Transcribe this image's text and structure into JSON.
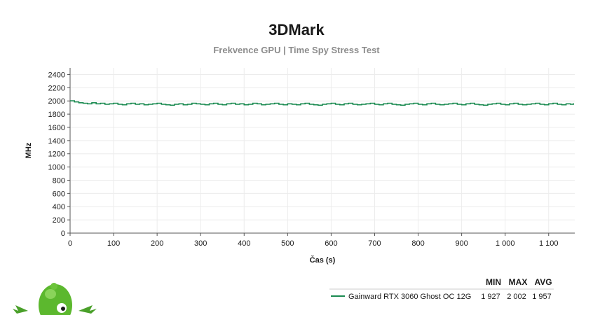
{
  "chart_data": {
    "type": "line",
    "title": "3DMark",
    "subtitle": "Frekvence GPU | Time Spy Stress Test",
    "xlabel": "Čas (s)",
    "ylabel": "MHz",
    "xlim": [
      0,
      1160
    ],
    "ylim": [
      0,
      2500
    ],
    "x_ticks": [
      0,
      100,
      200,
      300,
      400,
      500,
      600,
      700,
      800,
      900,
      1000,
      1100
    ],
    "x_tick_labels": [
      "0",
      "100",
      "200",
      "300",
      "400",
      "500",
      "600",
      "700",
      "800",
      "900",
      "1 000",
      "1 100"
    ],
    "y_ticks": [
      0,
      200,
      400,
      600,
      800,
      1000,
      1200,
      1400,
      1600,
      1800,
      2000,
      2200,
      2400
    ],
    "y_tick_labels": [
      "0",
      "200",
      "400",
      "600",
      "800",
      "1000",
      "1200",
      "1400",
      "1600",
      "1800",
      "2000",
      "2200",
      "2400"
    ],
    "grid": true,
    "series": [
      {
        "name": "Gainward RTX 3060 Ghost OC 12G",
        "color": "#1a8a50",
        "x": [
          0,
          10,
          20,
          30,
          40,
          50,
          60,
          70,
          80,
          90,
          100,
          110,
          120,
          130,
          140,
          150,
          160,
          170,
          180,
          190,
          200,
          210,
          220,
          230,
          240,
          250,
          260,
          270,
          280,
          290,
          300,
          310,
          320,
          330,
          340,
          350,
          360,
          370,
          380,
          390,
          400,
          410,
          420,
          430,
          440,
          450,
          460,
          470,
          480,
          490,
          500,
          510,
          520,
          530,
          540,
          550,
          560,
          570,
          580,
          590,
          600,
          610,
          620,
          630,
          640,
          650,
          660,
          670,
          680,
          690,
          700,
          710,
          720,
          730,
          740,
          750,
          760,
          770,
          780,
          790,
          800,
          810,
          820,
          830,
          840,
          850,
          860,
          870,
          880,
          890,
          900,
          910,
          920,
          930,
          940,
          950,
          960,
          970,
          980,
          990,
          1000,
          1010,
          1020,
          1030,
          1040,
          1050,
          1060,
          1070,
          1080,
          1090,
          1100,
          1110,
          1120,
          1130,
          1140,
          1150,
          1157
        ],
        "y": [
          2002,
          1985,
          1972,
          1965,
          1957,
          1972,
          1957,
          1965,
          1950,
          1957,
          1965,
          1950,
          1942,
          1957,
          1965,
          1950,
          1957,
          1942,
          1950,
          1957,
          1965,
          1950,
          1942,
          1935,
          1950,
          1957,
          1942,
          1950,
          1965,
          1957,
          1950,
          1942,
          1957,
          1965,
          1950,
          1942,
          1957,
          1965,
          1950,
          1957,
          1942,
          1950,
          1965,
          1957,
          1942,
          1950,
          1957,
          1965,
          1950,
          1942,
          1957,
          1950,
          1942,
          1957,
          1965,
          1950,
          1942,
          1935,
          1950,
          1957,
          1965,
          1950,
          1942,
          1957,
          1965,
          1950,
          1942,
          1950,
          1957,
          1965,
          1950,
          1942,
          1957,
          1965,
          1950,
          1942,
          1935,
          1950,
          1957,
          1965,
          1950,
          1942,
          1957,
          1965,
          1950,
          1942,
          1950,
          1957,
          1965,
          1950,
          1942,
          1957,
          1965,
          1950,
          1942,
          1935,
          1950,
          1957,
          1965,
          1950,
          1942,
          1957,
          1965,
          1950,
          1942,
          1950,
          1957,
          1965,
          1950,
          1942,
          1957,
          1965,
          1950,
          1942,
          1957,
          1950,
          1965
        ],
        "min": "1 927",
        "max": "2 002",
        "avg": "1 957"
      }
    ],
    "legend": {
      "placement": "bottom-right",
      "headers": [
        "MIN",
        "MAX",
        "AVG"
      ]
    }
  },
  "logo": {
    "name": "mascot-logo"
  }
}
